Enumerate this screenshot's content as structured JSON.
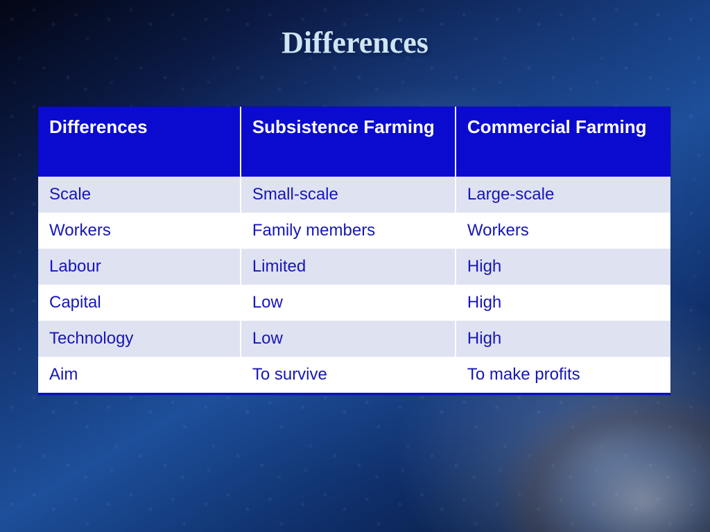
{
  "slide": {
    "title": "Differences",
    "title_color": "#cfe5f2",
    "title_font": "Times New Roman",
    "title_fontsize_pt": 33,
    "background_gradient": [
      "#030614",
      "#0b1a44",
      "#163a7a",
      "#1d4f9a",
      "#0f2f6a",
      "#06122e"
    ]
  },
  "table": {
    "type": "table",
    "header_bg": "#0b0bd0",
    "header_text_color": "#ffffff",
    "header_fontsize_pt": 20,
    "row_odd_bg": "#dfe2f1",
    "row_even_bg": "#ffffff",
    "cell_text_color": "#1616b8",
    "cell_fontsize_pt": 18,
    "bottom_border_color": "#0b0bd0",
    "column_widths_pct": [
      32,
      34,
      34
    ],
    "columns": [
      "Differences",
      "Subsistence Farming",
      "Commercial Farming"
    ],
    "rows": [
      [
        "Scale",
        "Small-scale",
        "Large-scale"
      ],
      [
        "Workers",
        "Family members",
        "Workers"
      ],
      [
        "Labour",
        "Limited",
        "High"
      ],
      [
        "Capital",
        "Low",
        "High"
      ],
      [
        "Technology",
        "Low",
        "High"
      ],
      [
        "Aim",
        "To survive",
        "To make profits"
      ]
    ]
  }
}
